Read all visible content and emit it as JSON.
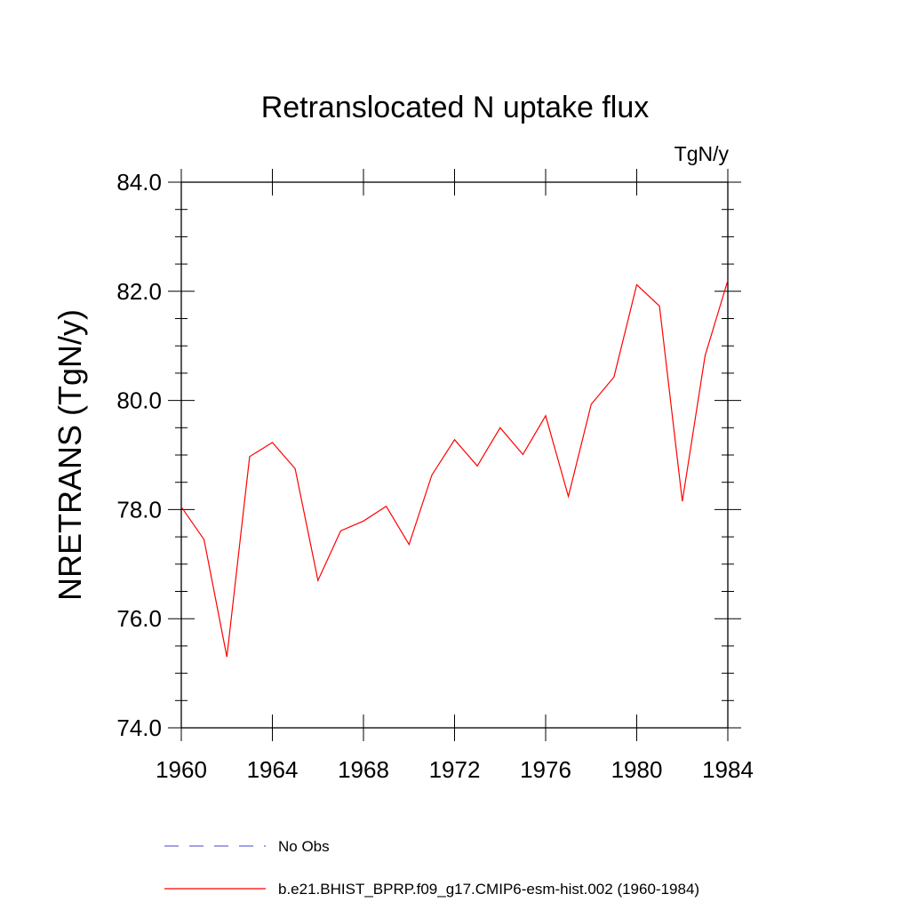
{
  "chart_data": {
    "type": "line",
    "title": "Retranslocated N uptake flux",
    "units": "TgN/y",
    "ylabel": "NRETRANS  (TgN/y)",
    "xlabel": "",
    "xlim": [
      1960,
      1984
    ],
    "ylim": [
      74.0,
      84.0
    ],
    "x_ticks": [
      "1960",
      "1964",
      "1968",
      "1972",
      "1976",
      "1980",
      "1984"
    ],
    "y_ticks": [
      "74.0",
      "76.0",
      "78.0",
      "80.0",
      "82.0",
      "84.0"
    ],
    "grid": false,
    "legend_position": "bottom",
    "series": [
      {
        "name": "No Obs",
        "color": "#6b6bd6",
        "style": "dashed",
        "x": [],
        "values": []
      },
      {
        "name": "b.e21.BHIST_BPRP.f09_g17.CMIP6-esm-hist.002 (1960-1984)",
        "color": "#ff0000",
        "style": "solid",
        "x": [
          1960,
          1961,
          1962,
          1963,
          1964,
          1965,
          1966,
          1967,
          1968,
          1969,
          1970,
          1971,
          1972,
          1973,
          1974,
          1975,
          1976,
          1977,
          1978,
          1979,
          1980,
          1981,
          1982,
          1983,
          1984
        ],
        "values": [
          78.05,
          77.45,
          75.3,
          78.97,
          79.23,
          78.75,
          76.7,
          77.61,
          77.79,
          78.06,
          77.36,
          78.63,
          79.28,
          78.8,
          79.5,
          79.01,
          79.72,
          78.24,
          79.93,
          80.43,
          82.12,
          81.73,
          78.15,
          80.82,
          82.2
        ]
      }
    ]
  }
}
